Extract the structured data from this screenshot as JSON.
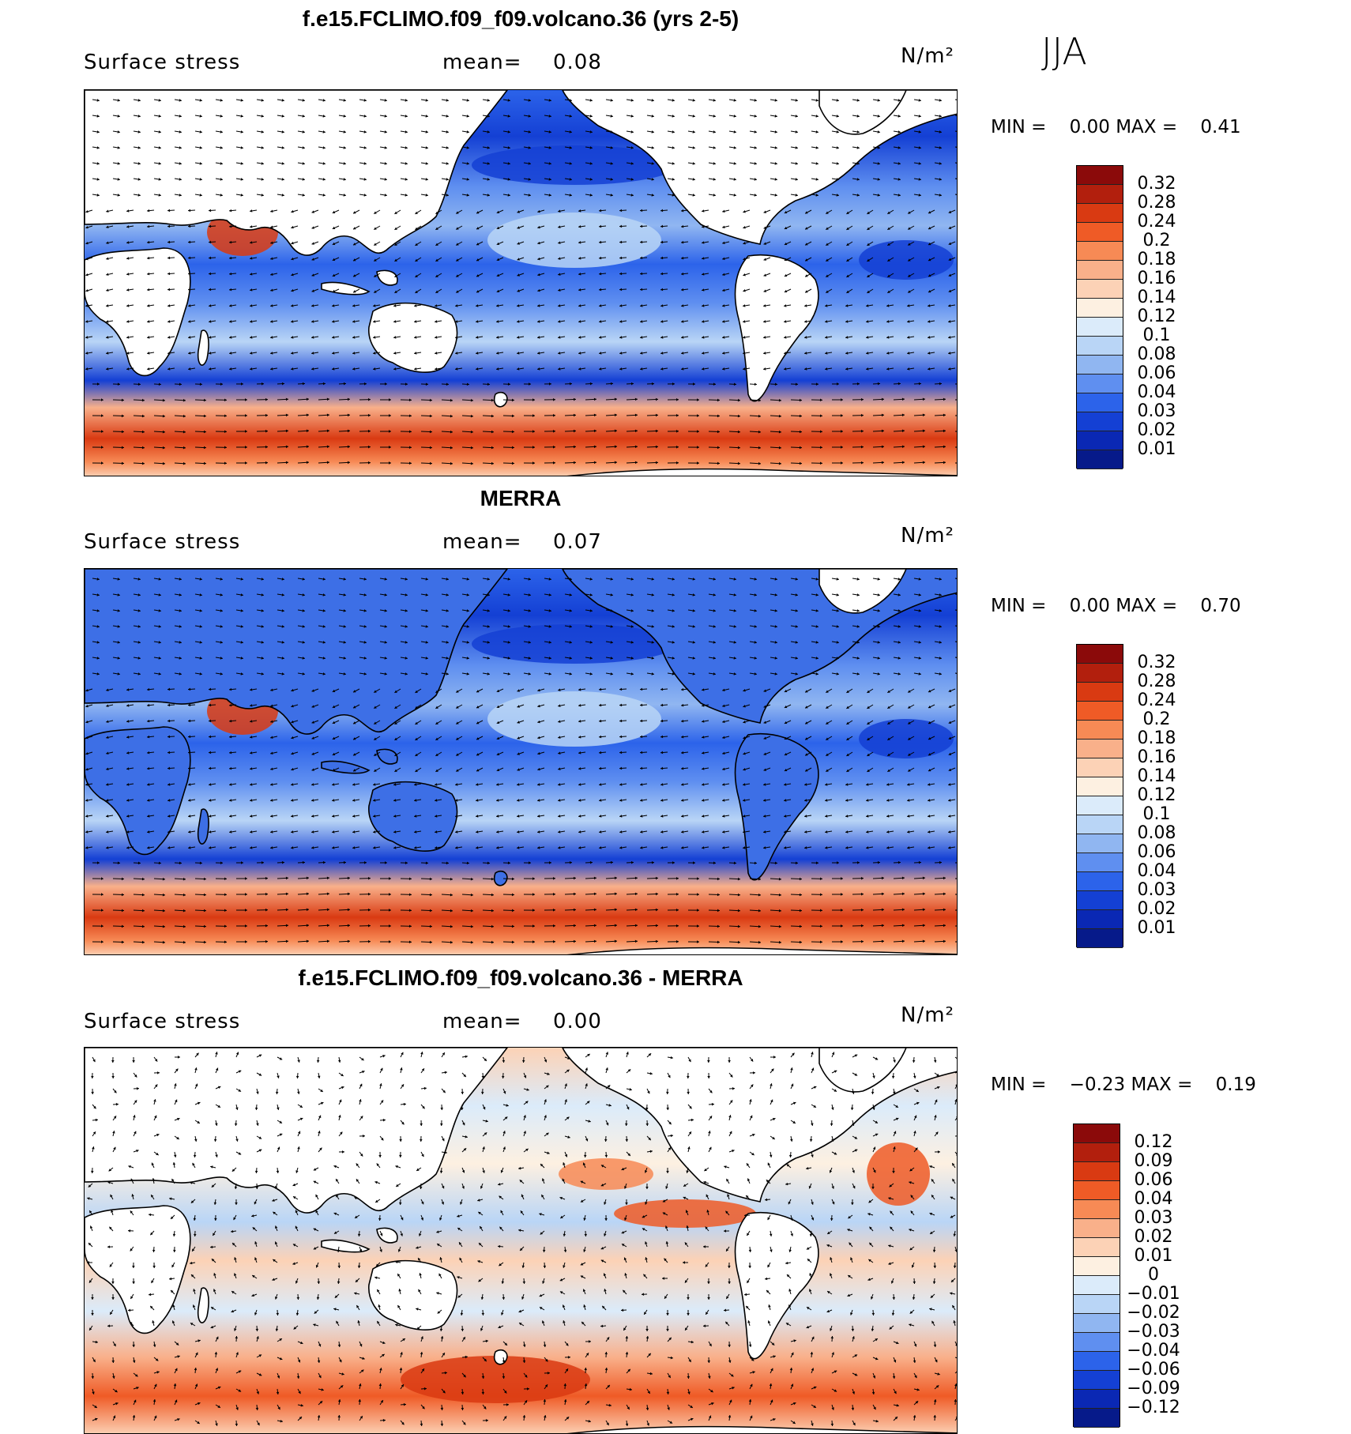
{
  "season": "JJA",
  "panels": [
    {
      "title": "f.e15.FCLIMO.f09_f09.volcano.36 (yrs 2-5)",
      "variable": "Surface stress",
      "mean_label": "mean=",
      "mean_value": "0.08",
      "units": "N/m²",
      "min_label": "MIN =",
      "min_value": "0.00",
      "max_label": "MAX =",
      "max_value": "0.41",
      "colorbar_labels": [
        "0.32",
        "0.28",
        "0.24",
        "0.2",
        "0.18",
        "0.16",
        "0.14",
        "0.12",
        "0.1",
        "0.08",
        "0.06",
        "0.04",
        "0.03",
        "0.02",
        "0.01"
      ],
      "colorbar_colors": [
        "#8b0a0a",
        "#b21f0d",
        "#d93a12",
        "#ef5b26",
        "#f78a55",
        "#f9b08a",
        "#fcd2b6",
        "#fdf0e1",
        "#dbebfa",
        "#b9d5f6",
        "#90b6f1",
        "#5f8ff0",
        "#2c63ea",
        "#1440d4",
        "#0a28b4",
        "#061a8a"
      ]
    },
    {
      "title": "MERRA",
      "variable": "Surface stress",
      "mean_label": "mean=",
      "mean_value": "0.07",
      "units": "N/m²",
      "min_label": "MIN =",
      "min_value": "0.00",
      "max_label": "MAX =",
      "max_value": "0.70",
      "colorbar_labels": [
        "0.32",
        "0.28",
        "0.24",
        "0.2",
        "0.18",
        "0.16",
        "0.14",
        "0.12",
        "0.1",
        "0.08",
        "0.06",
        "0.04",
        "0.03",
        "0.02",
        "0.01"
      ],
      "colorbar_colors": [
        "#8b0a0a",
        "#b21f0d",
        "#d93a12",
        "#ef5b26",
        "#f78a55",
        "#f9b08a",
        "#fcd2b6",
        "#fdf0e1",
        "#dbebfa",
        "#b9d5f6",
        "#90b6f1",
        "#5f8ff0",
        "#2c63ea",
        "#1440d4",
        "#0a28b4",
        "#061a8a"
      ]
    },
    {
      "title": "f.e15.FCLIMO.f09_f09.volcano.36 - MERRA",
      "variable": "Surface stress",
      "mean_label": "mean=",
      "mean_value": "0.00",
      "units": "N/m²",
      "min_label": "MIN =",
      "min_value": "−0.23",
      "max_label": "MAX =",
      "max_value": "0.19",
      "colorbar_labels": [
        "0.12",
        "0.09",
        "0.06",
        "0.04",
        "0.03",
        "0.02",
        "0.01",
        "0",
        "−0.01",
        "−0.02",
        "−0.03",
        "−0.04",
        "−0.06",
        "−0.09",
        "−0.12"
      ],
      "colorbar_colors": [
        "#8b0a0a",
        "#b21f0d",
        "#d93a12",
        "#ef5b26",
        "#f78a55",
        "#f9b08a",
        "#fcd2b6",
        "#fdf0e1",
        "#dbebfa",
        "#b9d5f6",
        "#90b6f1",
        "#5f8ff0",
        "#2c63ea",
        "#1440d4",
        "#0a28b4",
        "#061a8a"
      ]
    }
  ]
}
